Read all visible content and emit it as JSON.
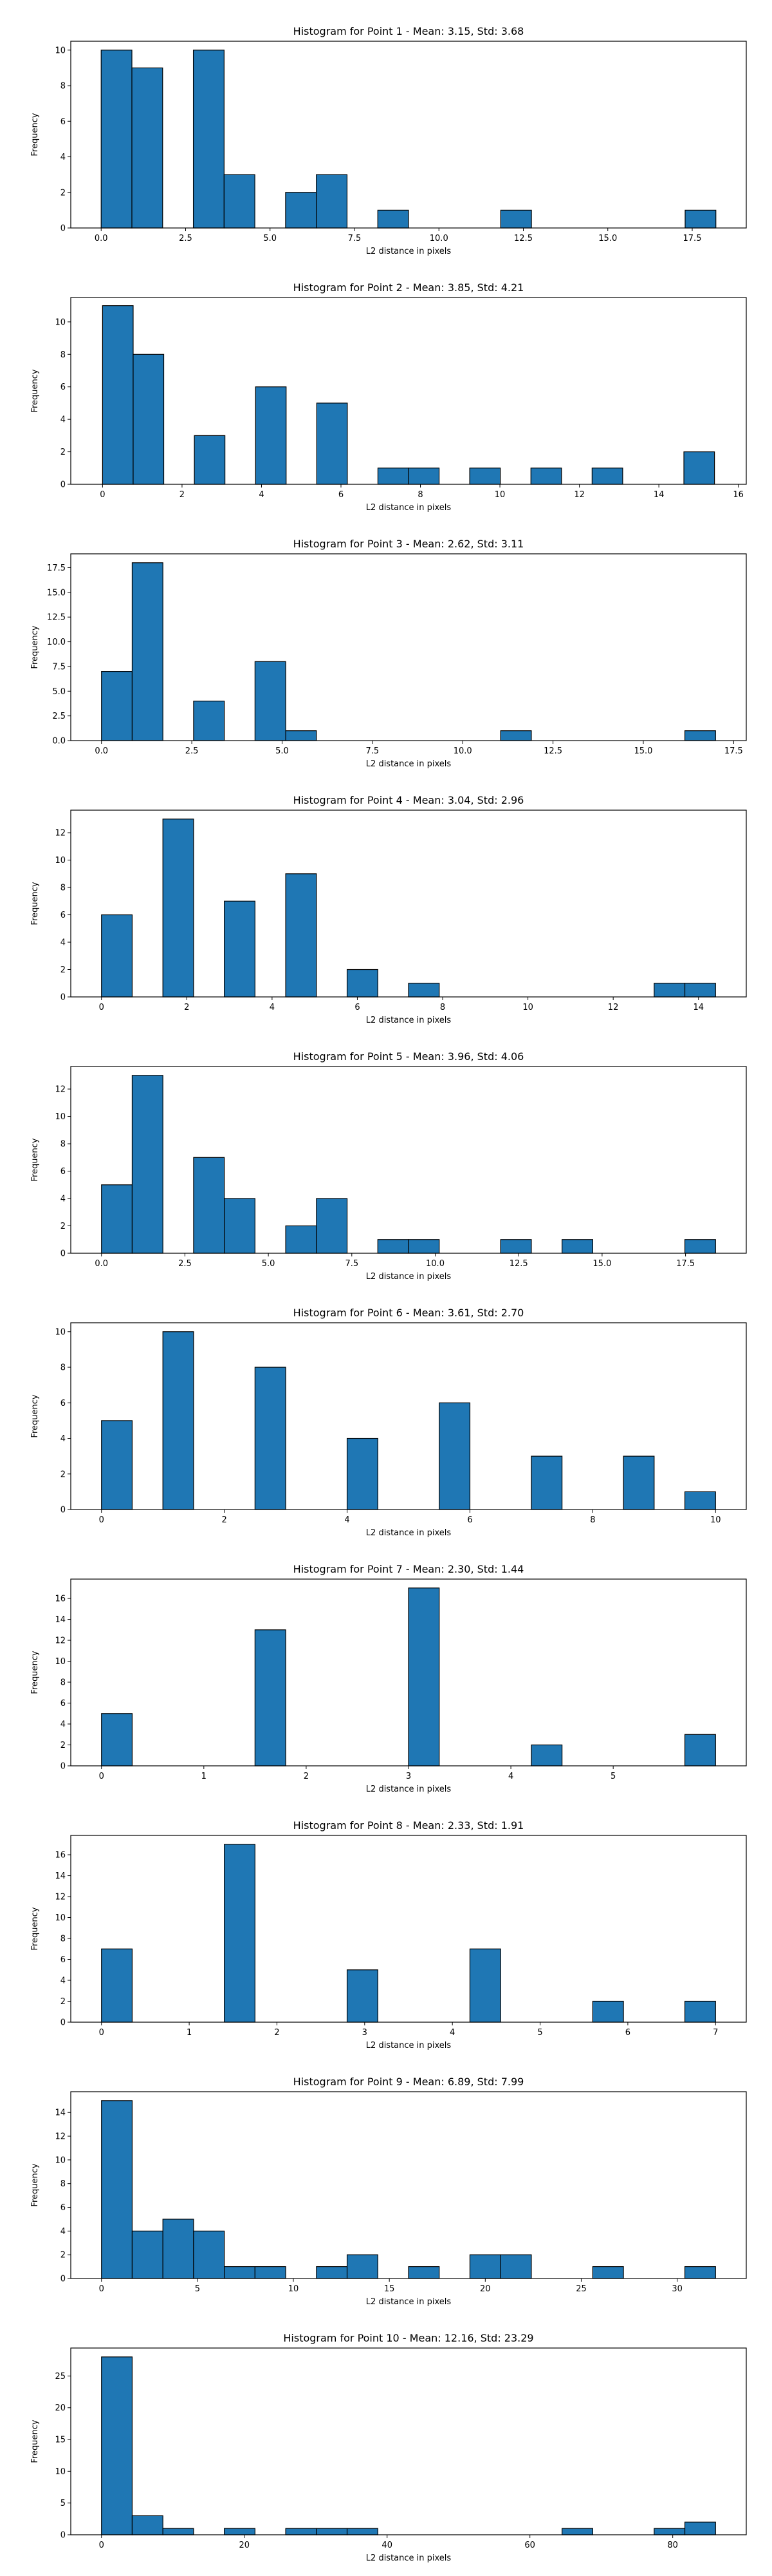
{
  "style": {
    "bar_color": "#1f77b4",
    "edge_color": "#000000",
    "background": "#ffffff"
  },
  "chart_data": [
    {
      "type": "bar",
      "title": "Histogram for Point 1 - Mean: 3.15, Std: 3.68",
      "xlabel": "L2 distance in pixels",
      "ylabel": "Frequency",
      "xlim": [
        -0.9,
        19.1
      ],
      "ylim": [
        0,
        10.5
      ],
      "xticks": [
        0,
        2.5,
        5,
        7.5,
        10,
        12.5,
        15,
        17.5
      ],
      "xtick_labels": [
        "0.0",
        "2.5",
        "5.0",
        "7.5",
        "10.0",
        "12.5",
        "15.0",
        "17.5"
      ],
      "yticks": [
        0,
        2,
        4,
        6,
        8,
        10
      ],
      "ytick_labels": [
        "0",
        "2",
        "4",
        "6",
        "8",
        "10"
      ],
      "bins": [
        0,
        0.91,
        1.82,
        2.73,
        3.64,
        4.55,
        5.46,
        6.37,
        7.28,
        8.19,
        9.1,
        10.01,
        10.92,
        11.83,
        12.74,
        13.65,
        14.56,
        15.47,
        16.38,
        17.29,
        18.2
      ],
      "counts": [
        10,
        9,
        0,
        10,
        3,
        0,
        2,
        3,
        0,
        1,
        0,
        0,
        0,
        1,
        0,
        0,
        0,
        0,
        0,
        1
      ]
    },
    {
      "type": "bar",
      "title": "Histogram for Point 2 - Mean: 3.85, Std: 4.21",
      "xlabel": "L2 distance in pixels",
      "ylabel": "Frequency",
      "xlim": [
        -0.8,
        16.2
      ],
      "ylim": [
        0,
        11.5
      ],
      "xticks": [
        0,
        2,
        4,
        6,
        8,
        10,
        12,
        14,
        16
      ],
      "xtick_labels": [
        "0",
        "2",
        "4",
        "6",
        "8",
        "10",
        "12",
        "14",
        "16"
      ],
      "yticks": [
        0,
        2,
        4,
        6,
        8,
        10
      ],
      "ytick_labels": [
        "0",
        "2",
        "4",
        "6",
        "8",
        "10"
      ],
      "bins": [
        0,
        0.77,
        1.54,
        2.31,
        3.08,
        3.85,
        4.62,
        5.39,
        6.16,
        6.93,
        7.7,
        8.47,
        9.24,
        10.01,
        10.78,
        11.55,
        12.32,
        13.09,
        13.86,
        14.63,
        15.4
      ],
      "counts": [
        11,
        8,
        0,
        3,
        0,
        6,
        0,
        5,
        0,
        1,
        1,
        0,
        1,
        0,
        1,
        0,
        1,
        0,
        0,
        2
      ]
    },
    {
      "type": "bar",
      "title": "Histogram for Point 3 - Mean: 2.62, Std: 3.11",
      "xlabel": "L2 distance in pixels",
      "ylabel": "Frequency",
      "xlim": [
        -0.85,
        17.85
      ],
      "ylim": [
        0,
        18.9
      ],
      "xticks": [
        0,
        2.5,
        5,
        7.5,
        10,
        12.5,
        15,
        17.5
      ],
      "xtick_labels": [
        "0.0",
        "2.5",
        "5.0",
        "7.5",
        "10.0",
        "12.5",
        "15.0",
        "17.5"
      ],
      "yticks": [
        0,
        2.5,
        5,
        7.5,
        10,
        12.5,
        15,
        17.5
      ],
      "ytick_labels": [
        "0.0",
        "2.5",
        "5.0",
        "7.5",
        "10.0",
        "12.5",
        "15.0",
        "17.5"
      ],
      "bins": [
        0,
        0.85,
        1.7,
        2.55,
        3.4,
        4.25,
        5.1,
        5.95,
        6.8,
        7.65,
        8.5,
        9.35,
        10.2,
        11.05,
        11.9,
        12.75,
        13.6,
        14.45,
        15.3,
        16.15,
        17.0
      ],
      "counts": [
        7,
        18,
        0,
        4,
        0,
        8,
        1,
        0,
        0,
        0,
        0,
        0,
        0,
        1,
        0,
        0,
        0,
        0,
        0,
        1
      ]
    },
    {
      "type": "bar",
      "title": "Histogram for Point 4 - Mean: 3.04, Std: 2.96",
      "xlabel": "L2 distance in pixels",
      "ylabel": "Frequency",
      "xlim": [
        -0.72,
        15.12
      ],
      "ylim": [
        0,
        13.65
      ],
      "xticks": [
        0,
        2,
        4,
        6,
        8,
        10,
        12,
        14
      ],
      "xtick_labels": [
        "0",
        "2",
        "4",
        "6",
        "8",
        "10",
        "12",
        "14"
      ],
      "yticks": [
        0,
        2,
        4,
        6,
        8,
        10,
        12
      ],
      "ytick_labels": [
        "0",
        "2",
        "4",
        "6",
        "8",
        "10",
        "12"
      ],
      "bins": [
        0,
        0.72,
        1.44,
        2.16,
        2.88,
        3.6,
        4.32,
        5.04,
        5.76,
        6.48,
        7.2,
        7.92,
        8.64,
        9.36,
        10.08,
        10.8,
        11.52,
        12.24,
        12.96,
        13.68,
        14.4
      ],
      "counts": [
        6,
        0,
        13,
        0,
        7,
        0,
        9,
        0,
        2,
        0,
        1,
        0,
        0,
        0,
        0,
        0,
        0,
        0,
        1,
        1
      ]
    },
    {
      "type": "bar",
      "title": "Histogram for Point 5 - Mean: 3.96, Std: 4.06",
      "xlabel": "L2 distance in pixels",
      "ylabel": "Frequency",
      "xlim": [
        -0.92,
        19.32
      ],
      "ylim": [
        0,
        13.65
      ],
      "xticks": [
        0,
        2.5,
        5,
        7.5,
        10,
        12.5,
        15,
        17.5
      ],
      "xtick_labels": [
        "0.0",
        "2.5",
        "5.0",
        "7.5",
        "10.0",
        "12.5",
        "15.0",
        "17.5"
      ],
      "yticks": [
        0,
        2,
        4,
        6,
        8,
        10,
        12
      ],
      "ytick_labels": [
        "0",
        "2",
        "4",
        "6",
        "8",
        "10",
        "12"
      ],
      "bins": [
        0,
        0.92,
        1.84,
        2.76,
        3.68,
        4.6,
        5.52,
        6.44,
        7.36,
        8.28,
        9.2,
        10.12,
        11.04,
        11.96,
        12.88,
        13.8,
        14.72,
        15.64,
        16.56,
        17.48,
        18.4
      ],
      "counts": [
        5,
        13,
        0,
        7,
        4,
        0,
        2,
        4,
        0,
        1,
        1,
        0,
        0,
        1,
        0,
        1,
        0,
        0,
        0,
        1
      ]
    },
    {
      "type": "bar",
      "title": "Histogram for Point 6 - Mean: 3.61, Std: 2.70",
      "xlabel": "L2 distance in pixels",
      "ylabel": "Frequency",
      "xlim": [
        -0.5,
        10.5
      ],
      "ylim": [
        0,
        10.5
      ],
      "xticks": [
        0,
        2,
        4,
        6,
        8,
        10
      ],
      "xtick_labels": [
        "0",
        "2",
        "4",
        "6",
        "8",
        "10"
      ],
      "yticks": [
        0,
        2,
        4,
        6,
        8,
        10
      ],
      "ytick_labels": [
        "0",
        "2",
        "4",
        "6",
        "8",
        "10"
      ],
      "bins": [
        0,
        0.5,
        1,
        1.5,
        2,
        2.5,
        3,
        3.5,
        4,
        4.5,
        5,
        5.5,
        6,
        6.5,
        7,
        7.5,
        8,
        8.5,
        9,
        9.5,
        10
      ],
      "counts": [
        5,
        0,
        10,
        0,
        0,
        8,
        0,
        0,
        4,
        0,
        0,
        6,
        0,
        0,
        3,
        0,
        0,
        3,
        0,
        1
      ]
    },
    {
      "type": "bar",
      "title": "Histogram for Point 7 - Mean: 2.30, Std: 1.44",
      "xlabel": "L2 distance in pixels",
      "ylabel": "Frequency",
      "xlim": [
        -0.3,
        6.3
      ],
      "ylim": [
        0,
        17.85
      ],
      "xticks": [
        0,
        1,
        2,
        3,
        4,
        5
      ],
      "xtick_labels": [
        "0",
        "1",
        "2",
        "3",
        "4",
        "5"
      ],
      "yticks": [
        0,
        2,
        4,
        6,
        8,
        10,
        12,
        14,
        16
      ],
      "ytick_labels": [
        "0",
        "2",
        "4",
        "6",
        "8",
        "10",
        "12",
        "14",
        "16"
      ],
      "bins": [
        0,
        0.3,
        0.6,
        0.9,
        1.2,
        1.5,
        1.8,
        2.1,
        2.4,
        2.7,
        3.0,
        3.3,
        3.6,
        3.9,
        4.2,
        4.5,
        4.8,
        5.1,
        5.4,
        5.7,
        6.0
      ],
      "counts": [
        5,
        0,
        0,
        0,
        0,
        13,
        0,
        0,
        0,
        0,
        17,
        0,
        0,
        0,
        2,
        0,
        0,
        0,
        0,
        3
      ]
    },
    {
      "type": "bar",
      "title": "Histogram for Point 8 - Mean: 2.33, Std: 1.91",
      "xlabel": "L2 distance in pixels",
      "ylabel": "Frequency",
      "xlim": [
        -0.35,
        7.35
      ],
      "ylim": [
        0,
        17.85
      ],
      "xticks": [
        0,
        1,
        2,
        3,
        4,
        5,
        6,
        7
      ],
      "xtick_labels": [
        "0",
        "1",
        "2",
        "3",
        "4",
        "5",
        "6",
        "7"
      ],
      "yticks": [
        0,
        2,
        4,
        6,
        8,
        10,
        12,
        14,
        16
      ],
      "ytick_labels": [
        "0",
        "2",
        "4",
        "6",
        "8",
        "10",
        "12",
        "14",
        "16"
      ],
      "bins": [
        0,
        0.35,
        0.7,
        1.05,
        1.4,
        1.75,
        2.1,
        2.45,
        2.8,
        3.15,
        3.5,
        3.85,
        4.2,
        4.55,
        4.9,
        5.25,
        5.6,
        5.95,
        6.3,
        6.65,
        7.0
      ],
      "counts": [
        7,
        0,
        0,
        0,
        17,
        0,
        0,
        0,
        5,
        0,
        0,
        0,
        7,
        0,
        0,
        0,
        2,
        0,
        0,
        2
      ]
    },
    {
      "type": "bar",
      "title": "Histogram for Point 9 - Mean: 6.89, Std: 7.99",
      "xlabel": "L2 distance in pixels",
      "ylabel": "Frequency",
      "xlim": [
        -1.6,
        33.6
      ],
      "ylim": [
        0,
        15.75
      ],
      "xticks": [
        0,
        5,
        10,
        15,
        20,
        25,
        30
      ],
      "xtick_labels": [
        "0",
        "5",
        "10",
        "15",
        "20",
        "25",
        "30"
      ],
      "yticks": [
        0,
        2,
        4,
        6,
        8,
        10,
        12,
        14
      ],
      "ytick_labels": [
        "0",
        "2",
        "4",
        "6",
        "8",
        "10",
        "12",
        "14"
      ],
      "bins": [
        0,
        1.6,
        3.2,
        4.8,
        6.4,
        8.0,
        9.6,
        11.2,
        12.8,
        14.4,
        16.0,
        17.6,
        19.2,
        20.8,
        22.4,
        24.0,
        25.6,
        27.2,
        28.8,
        30.4,
        32.0
      ],
      "counts": [
        15,
        4,
        5,
        4,
        1,
        1,
        0,
        1,
        2,
        0,
        1,
        0,
        2,
        2,
        0,
        0,
        1,
        0,
        0,
        1
      ]
    },
    {
      "type": "bar",
      "title": "Histogram for Point 10 - Mean: 12.16, Std: 23.29",
      "xlabel": "L2 distance in pixels",
      "ylabel": "Frequency",
      "xlim": [
        -4.3,
        90.3
      ],
      "ylim": [
        0,
        29.4
      ],
      "xticks": [
        0,
        20,
        40,
        60,
        80
      ],
      "xtick_labels": [
        "0",
        "20",
        "40",
        "60",
        "80"
      ],
      "yticks": [
        0,
        5,
        10,
        15,
        20,
        25
      ],
      "ytick_labels": [
        "0",
        "5",
        "10",
        "15",
        "20",
        "25"
      ],
      "bins": [
        0,
        4.3,
        8.6,
        12.9,
        17.2,
        21.5,
        25.8,
        30.1,
        34.4,
        38.7,
        43.0,
        47.3,
        51.6,
        55.9,
        60.2,
        64.5,
        68.8,
        73.1,
        77.4,
        81.7,
        86.0
      ],
      "counts": [
        28,
        3,
        1,
        0,
        1,
        0,
        1,
        1,
        1,
        0,
        0,
        0,
        0,
        0,
        0,
        1,
        0,
        0,
        1,
        2
      ]
    }
  ]
}
